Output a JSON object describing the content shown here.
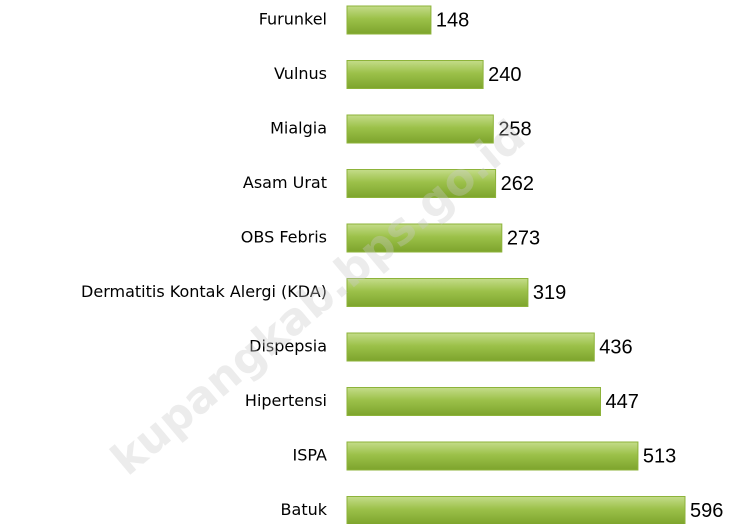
{
  "chart_data": {
    "type": "bar",
    "orientation": "horizontal",
    "categories": [
      "Furunkel",
      "Vulnus",
      "Mialgia",
      "Asam Urat",
      "OBS Febris",
      "Dermatitis Kontak Alergi (KDA)",
      "Dispepsia",
      "Hipertensi",
      "ISPA",
      "Batuk"
    ],
    "values": [
      148,
      240,
      258,
      262,
      273,
      319,
      436,
      447,
      513,
      596
    ],
    "color": "#8db33a",
    "watermark": "kupangkab.bps.go.id"
  }
}
